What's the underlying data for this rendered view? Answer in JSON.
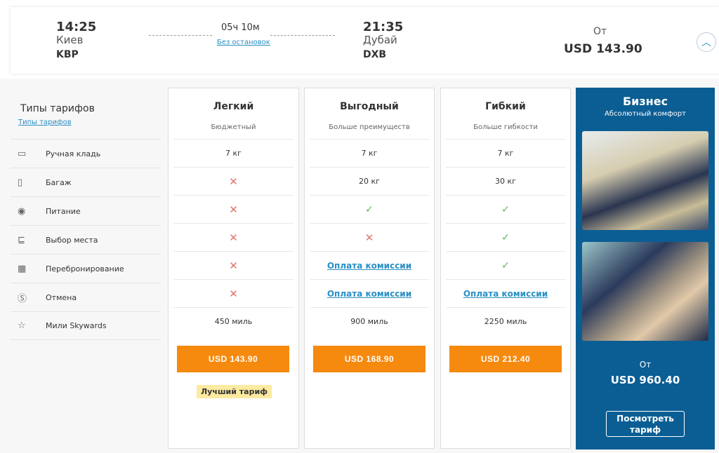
{
  "flight": {
    "dep_time": "14:25",
    "dep_city": "Киев",
    "dep_code": "KBP",
    "duration": "05ч 10м",
    "stops": "Без остановок",
    "arr_time": "21:35",
    "arr_city": "Дубай",
    "arr_code": "DXB",
    "from_label": "От",
    "price": "USD 143.90"
  },
  "sidebar": {
    "title": "Типы тарифов",
    "link": "Типы тарифов",
    "items": [
      {
        "icon": "carry-on-bag-icon",
        "glyph": "▭",
        "label": "Ручная кладь"
      },
      {
        "icon": "luggage-icon",
        "glyph": "▯",
        "label": "Багаж"
      },
      {
        "icon": "meal-icon",
        "glyph": "◉",
        "label": "Питание"
      },
      {
        "icon": "seat-icon",
        "glyph": "⊑",
        "label": "Выбор места"
      },
      {
        "icon": "calendar-icon",
        "glyph": "▦",
        "label": "Перебронирование"
      },
      {
        "icon": "refund-icon",
        "glyph": "Ⓢ",
        "label": "Отмена"
      },
      {
        "icon": "star-icon",
        "glyph": "☆",
        "label": "Мили Skywards"
      }
    ]
  },
  "fares": [
    {
      "name": "Легкий",
      "subtitle": "Бюджетный",
      "rows": [
        {
          "t": "text",
          "v": "7 кг"
        },
        {
          "t": "cross",
          "v": "✕"
        },
        {
          "t": "cross",
          "v": "✕"
        },
        {
          "t": "cross",
          "v": "✕"
        },
        {
          "t": "cross",
          "v": "✕"
        },
        {
          "t": "cross",
          "v": "✕"
        },
        {
          "t": "text",
          "v": "450 миль"
        }
      ],
      "price": "USD 143.90",
      "badge": "Лучший тариф"
    },
    {
      "name": "Выгодный",
      "subtitle": "Больше преимуществ",
      "rows": [
        {
          "t": "text",
          "v": "7 кг"
        },
        {
          "t": "text",
          "v": "20 кг"
        },
        {
          "t": "check",
          "v": "✓"
        },
        {
          "t": "cross",
          "v": "✕"
        },
        {
          "t": "link",
          "v": "Оплата комиссии"
        },
        {
          "t": "link",
          "v": "Оплата комиссии"
        },
        {
          "t": "text",
          "v": "900 миль"
        }
      ],
      "price": "USD 168.90"
    },
    {
      "name": "Гибкий",
      "subtitle": "Больше гибкости",
      "rows": [
        {
          "t": "text",
          "v": "7 кг"
        },
        {
          "t": "text",
          "v": "30 кг"
        },
        {
          "t": "check",
          "v": "✓"
        },
        {
          "t": "check",
          "v": "✓"
        },
        {
          "t": "check",
          "v": "✓"
        },
        {
          "t": "link",
          "v": "Оплата комиссии"
        },
        {
          "t": "text",
          "v": "2250 миль"
        }
      ],
      "price": "USD 212.40"
    }
  ],
  "business": {
    "title": "Бизнес",
    "subtitle": "Абсолютный комфорт",
    "from_label": "От",
    "price": "USD 960.40",
    "button": "Посмотреть тариф"
  },
  "colors": {
    "accent": "#f68a0f",
    "brand": "#0b5e94",
    "link": "#2a8fc4"
  }
}
